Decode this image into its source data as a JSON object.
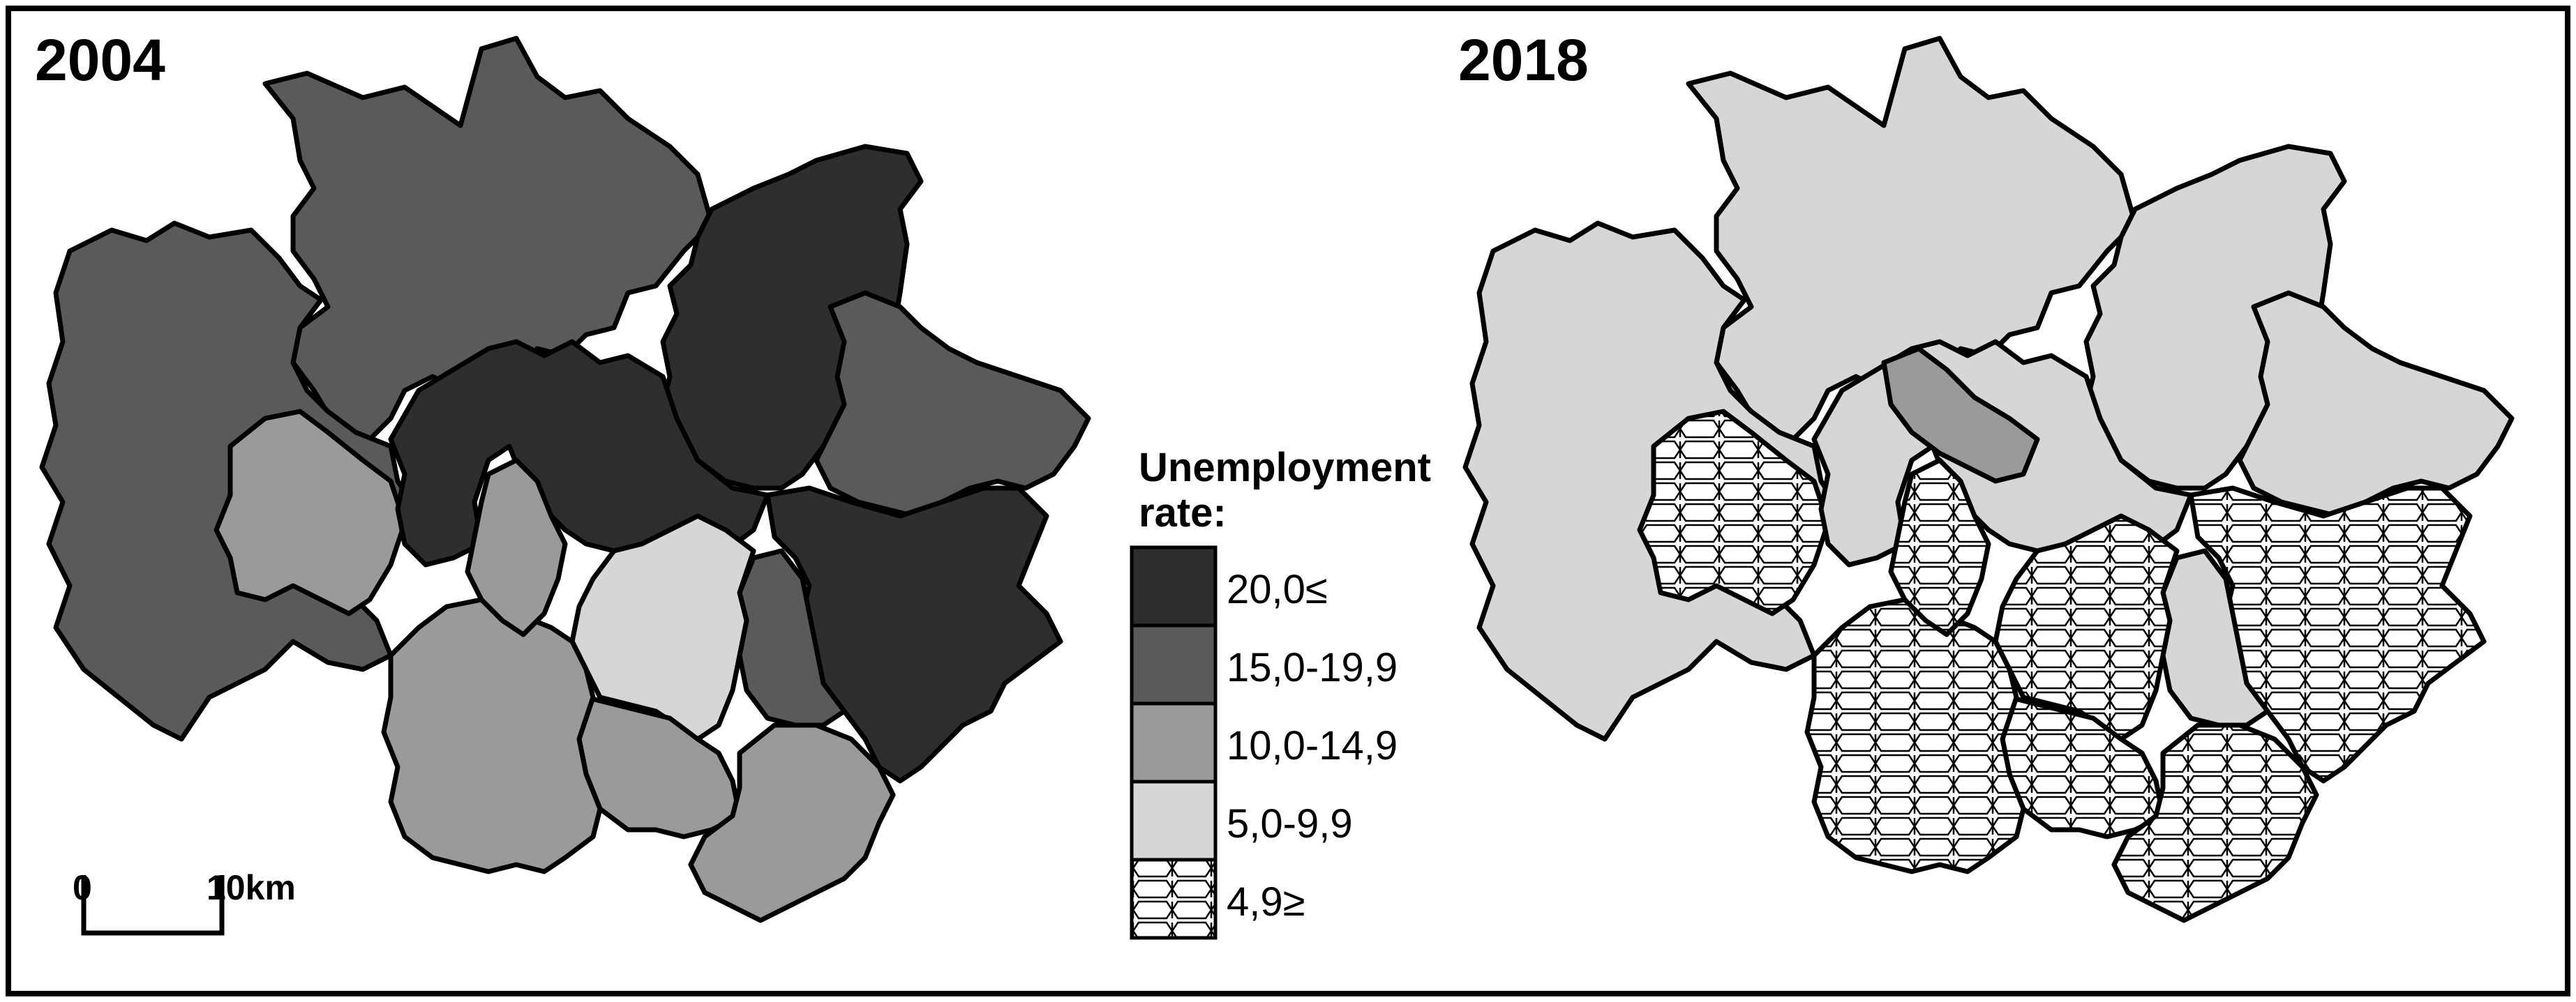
{
  "maps": [
    {
      "year": "2004"
    },
    {
      "year": "2018"
    }
  ],
  "legend": {
    "title_line1": "Unemployment",
    "title_line2": "rate:",
    "classes": [
      {
        "label": "20,0≤",
        "fill": "#2e2e2e",
        "pattern": "none"
      },
      {
        "label": "15,0-19,9",
        "fill": "#5a5a5a",
        "pattern": "none"
      },
      {
        "label": "10,0-14,9",
        "fill": "#9a9a9a",
        "pattern": "none"
      },
      {
        "label": "5,0-9,9",
        "fill": "#d6d6d6",
        "pattern": "none"
      },
      {
        "label": "4,9≥",
        "fill": "#ffffff",
        "pattern": "honeycomb"
      }
    ]
  },
  "scale_bar": {
    "start_label": "0",
    "end_label": "10km"
  },
  "colors": {
    "outline": "#000000",
    "frame": "#000000",
    "background": "#ffffff"
  }
}
